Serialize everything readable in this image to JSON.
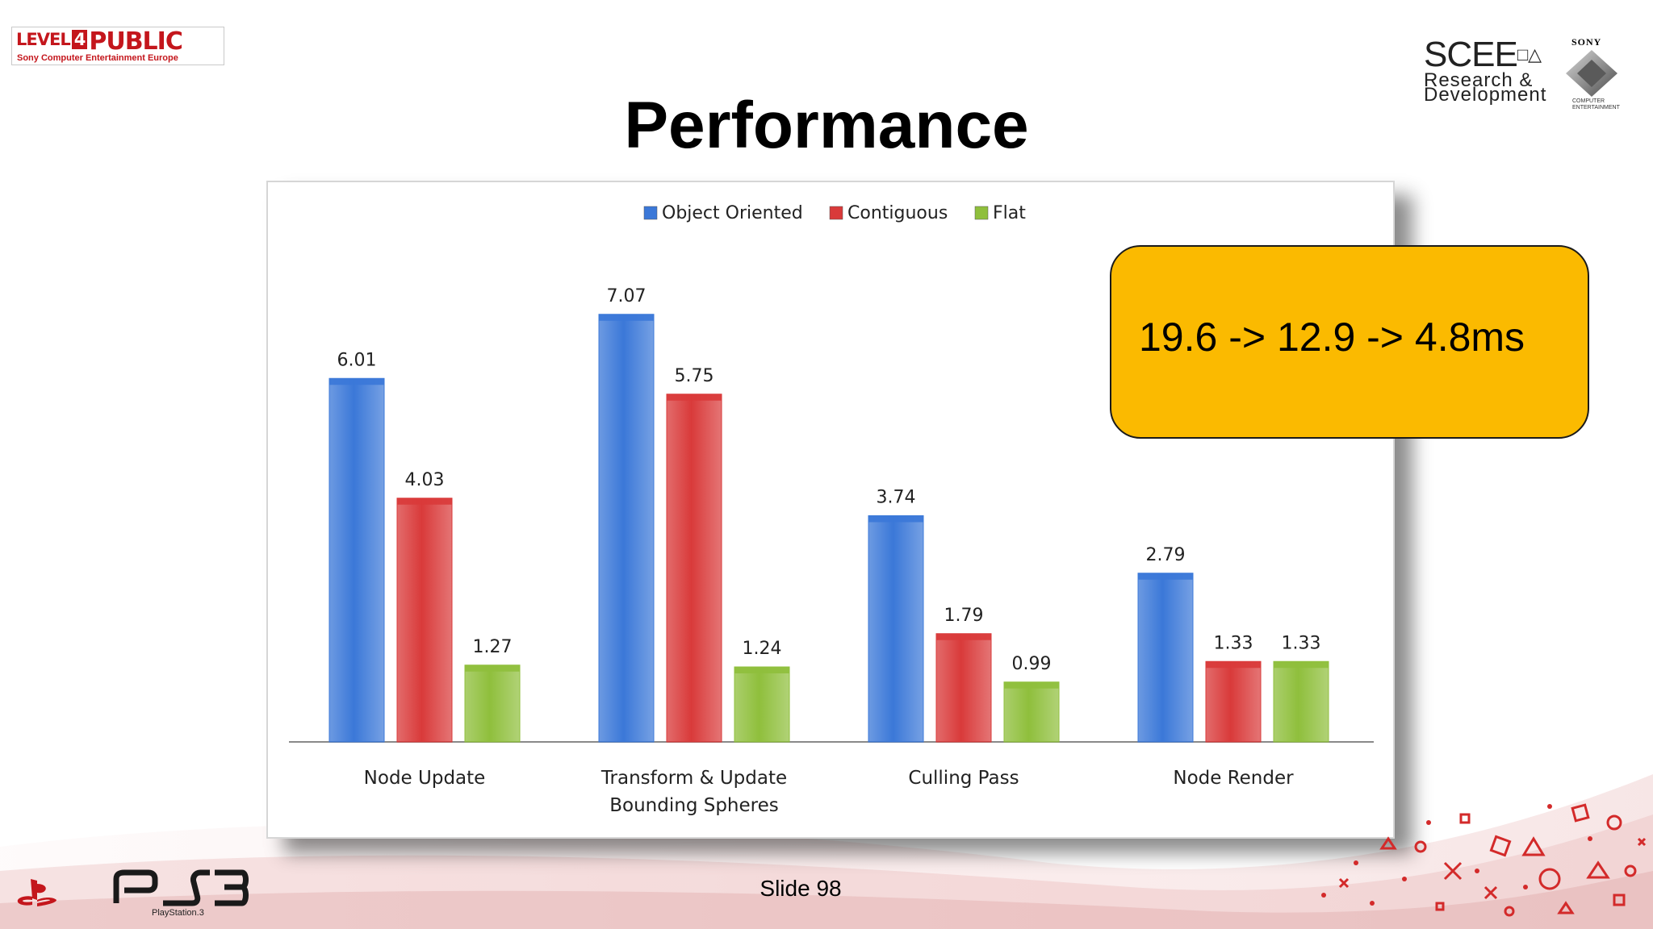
{
  "header": {
    "badge_level": "LEVEL",
    "badge_number": "4",
    "badge_public": "PUBLIC",
    "badge_sub": "Sony Computer Entertainment Europe",
    "title": "Performance",
    "scee_big": "SCEE",
    "scee_line1": "Research &",
    "scee_line2": "Development",
    "sony": "SONY",
    "sony_caption_1": "COMPUTER",
    "sony_caption_2": "ENTERTAINMENT"
  },
  "callout": {
    "text": "19.6 -> 12.9 -> 4.8ms",
    "color": "#fbba00"
  },
  "footer": {
    "slide": "Slide 98",
    "ps3_caption": "PlayStation.3"
  },
  "chart_data": {
    "type": "bar",
    "categories": [
      [
        "Node Update"
      ],
      [
        "Transform & Update",
        "Bounding Spheres"
      ],
      [
        "Culling Pass"
      ],
      [
        "Node Render"
      ]
    ],
    "series": [
      {
        "name": "Object Oriented",
        "color": "#3b78d8",
        "values": [
          6.01,
          7.07,
          3.74,
          2.79
        ]
      },
      {
        "name": "Contiguous",
        "color": "#d93a3a",
        "values": [
          4.03,
          5.75,
          1.79,
          1.33
        ]
      },
      {
        "name": "Flat",
        "color": "#8fbf3c",
        "values": [
          1.27,
          1.24,
          0.99,
          1.33
        ]
      }
    ],
    "data_labels": [
      [
        "6.01",
        "7.07",
        "3.74",
        "2.79"
      ],
      [
        "4.03",
        "5.75",
        "1.79",
        "1.33"
      ],
      [
        "1.27",
        "1.24",
        "0.99",
        "1.33"
      ]
    ],
    "legend_position": "top-center",
    "ylim": [
      0,
      8
    ],
    "grid": false
  }
}
